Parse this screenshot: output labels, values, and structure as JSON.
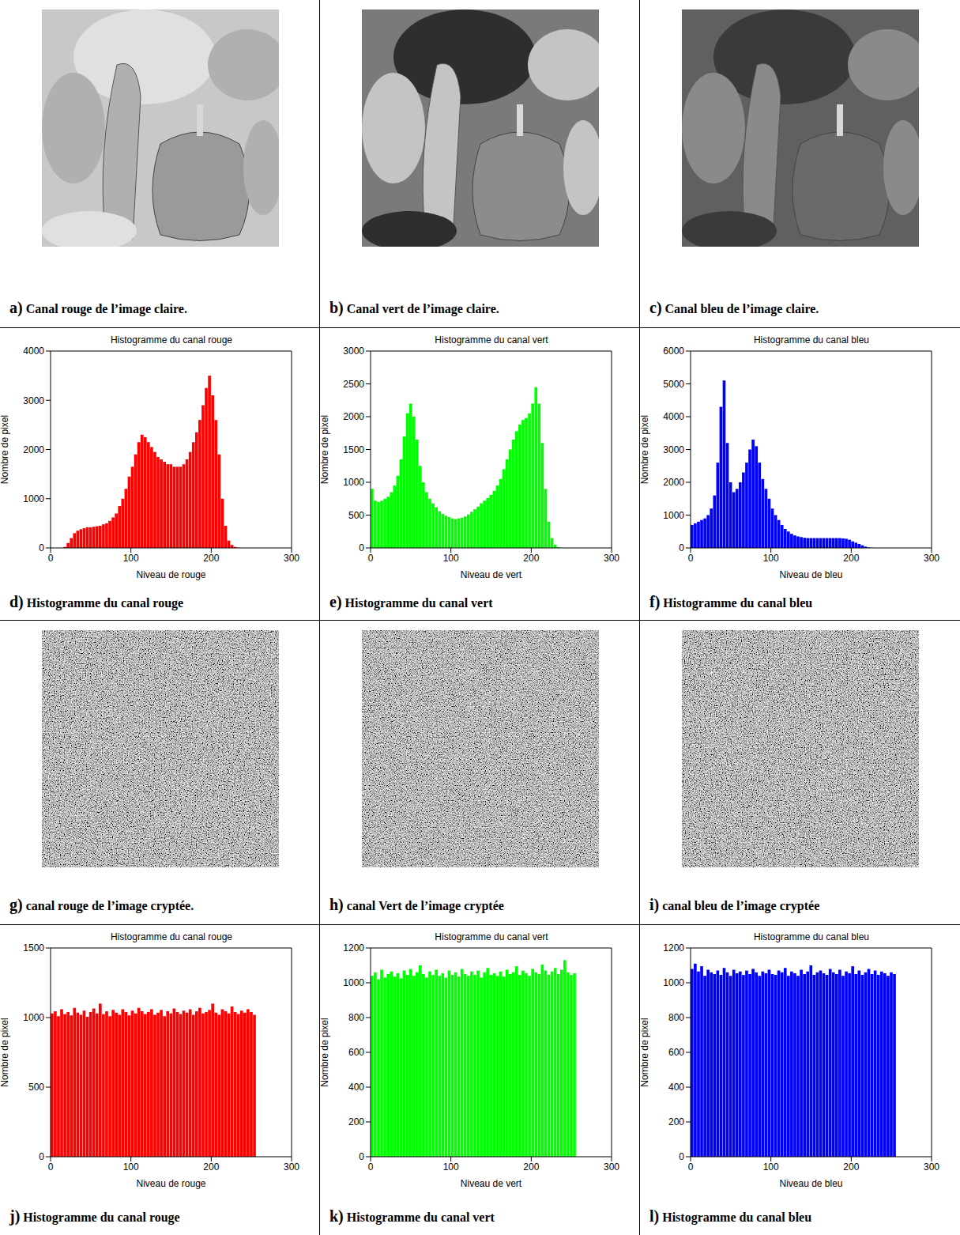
{
  "chart_data": [
    {
      "type": "histogram",
      "title": "Histogramme du canal rouge",
      "x_label": "Niveau de rouge",
      "y_label": "Nombre de pixel",
      "caption": "d) Histogramme du canal rouge",
      "color": "#ff0000",
      "bins": [
        0,
        4,
        8,
        12,
        16,
        20,
        24,
        28,
        32,
        36,
        40,
        44,
        48,
        52,
        56,
        60,
        64,
        68,
        72,
        76,
        80,
        84,
        88,
        92,
        96,
        100,
        104,
        108,
        112,
        116,
        120,
        124,
        128,
        132,
        136,
        140,
        144,
        148,
        152,
        156,
        160,
        164,
        168,
        172,
        176,
        180,
        184,
        188,
        192,
        196,
        200,
        204,
        208,
        212,
        216,
        220,
        224,
        228,
        232,
        236,
        240,
        244,
        248,
        252,
        256
      ],
      "values": [
        0,
        0,
        0,
        0,
        20,
        100,
        200,
        300,
        350,
        380,
        400,
        420,
        420,
        430,
        440,
        450,
        480,
        500,
        550,
        620,
        700,
        850,
        1000,
        1200,
        1450,
        1650,
        1900,
        2150,
        2300,
        2250,
        2150,
        2050,
        1950,
        1850,
        1800,
        1750,
        1700,
        1700,
        1650,
        1650,
        1650,
        1700,
        1800,
        1950,
        2150,
        2350,
        2600,
        2900,
        3250,
        3500,
        3100,
        2600,
        1900,
        1000,
        450,
        150,
        60,
        20,
        5,
        0,
        0,
        0,
        0,
        0
      ],
      "xlim": [
        0,
        300
      ],
      "xticks": [
        0,
        100,
        200,
        300
      ],
      "ylim": [
        0,
        4000
      ],
      "yticks": [
        0,
        1000,
        2000,
        3000,
        4000
      ]
    },
    {
      "type": "histogram",
      "title": "Histogramme du canal vert",
      "x_label": "Niveau de vert",
      "y_label": "Nombre de pixel",
      "caption": "e) Histogramme du canal vert",
      "color": "#00ff00",
      "bins": [
        0,
        4,
        8,
        12,
        16,
        20,
        24,
        28,
        32,
        36,
        40,
        44,
        48,
        52,
        56,
        60,
        64,
        68,
        72,
        76,
        80,
        84,
        88,
        92,
        96,
        100,
        104,
        108,
        112,
        116,
        120,
        124,
        128,
        132,
        136,
        140,
        144,
        148,
        152,
        156,
        160,
        164,
        168,
        172,
        176,
        180,
        184,
        188,
        192,
        196,
        200,
        204,
        208,
        212,
        216,
        220,
        224,
        228,
        232,
        236,
        240,
        244,
        248,
        252,
        256
      ],
      "values": [
        900,
        720,
        700,
        720,
        750,
        780,
        850,
        950,
        1100,
        1350,
        1700,
        2050,
        2200,
        2000,
        1650,
        1250,
        1000,
        850,
        750,
        680,
        620,
        560,
        520,
        490,
        470,
        450,
        440,
        450,
        460,
        480,
        510,
        550,
        590,
        630,
        680,
        720,
        760,
        810,
        870,
        950,
        1050,
        1200,
        1350,
        1500,
        1650,
        1780,
        1880,
        1950,
        1980,
        2050,
        2200,
        2450,
        2200,
        1600,
        900,
        400,
        150,
        50,
        10,
        0,
        0,
        0,
        0,
        0
      ],
      "xlim": [
        0,
        300
      ],
      "xticks": [
        0,
        100,
        200,
        300
      ],
      "ylim": [
        0,
        3000
      ],
      "yticks": [
        0,
        500,
        1000,
        1500,
        2000,
        2500,
        3000
      ]
    },
    {
      "type": "histogram",
      "title": "Histogramme du canal bleu",
      "x_label": "Niveau de bleu",
      "y_label": "Nombre de pixel",
      "caption": "f) Histogramme du canal bleu",
      "color": "#0000ff",
      "bins": [
        0,
        4,
        8,
        12,
        16,
        20,
        24,
        28,
        32,
        36,
        40,
        44,
        48,
        52,
        56,
        60,
        64,
        68,
        72,
        76,
        80,
        84,
        88,
        92,
        96,
        100,
        104,
        108,
        112,
        116,
        120,
        124,
        128,
        132,
        136,
        140,
        144,
        148,
        152,
        156,
        160,
        164,
        168,
        172,
        176,
        180,
        184,
        188,
        192,
        196,
        200,
        204,
        208,
        212,
        216,
        220,
        224,
        228,
        232,
        236,
        240,
        244,
        248,
        252,
        256
      ],
      "values": [
        700,
        750,
        800,
        850,
        900,
        1000,
        1200,
        1600,
        2600,
        4300,
        5100,
        3200,
        2000,
        1700,
        1800,
        2000,
        2300,
        2600,
        3000,
        3300,
        3100,
        2600,
        2100,
        1800,
        1500,
        1200,
        1000,
        850,
        700,
        580,
        500,
        430,
        380,
        350,
        330,
        310,
        300,
        300,
        300,
        300,
        300,
        300,
        300,
        300,
        300,
        300,
        300,
        290,
        280,
        250,
        200,
        160,
        120,
        80,
        40,
        15,
        5,
        0,
        0,
        0,
        0,
        0,
        0,
        0
      ],
      "xlim": [
        0,
        300
      ],
      "xticks": [
        0,
        100,
        200,
        300
      ],
      "ylim": [
        0,
        6000
      ],
      "yticks": [
        0,
        1000,
        2000,
        3000,
        4000,
        5000,
        6000
      ]
    },
    {
      "type": "histogram",
      "title": "Histogramme du canal rouge",
      "x_label": "Niveau de rouge",
      "y_label": "Nombre de pixel",
      "caption": "j) Histogramme du canal rouge",
      "color": "#ff0000",
      "bins": [
        0,
        4,
        8,
        12,
        16,
        20,
        24,
        28,
        32,
        36,
        40,
        44,
        48,
        52,
        56,
        60,
        64,
        68,
        72,
        76,
        80,
        84,
        88,
        92,
        96,
        100,
        104,
        108,
        112,
        116,
        120,
        124,
        128,
        132,
        136,
        140,
        144,
        148,
        152,
        156,
        160,
        164,
        168,
        172,
        176,
        180,
        184,
        188,
        192,
        196,
        200,
        204,
        208,
        212,
        216,
        220,
        224,
        228,
        232,
        236,
        240,
        244,
        248,
        252,
        256
      ],
      "values": [
        1030,
        1045,
        1010,
        1060,
        1025,
        1040,
        1015,
        1070,
        1035,
        1020,
        1050,
        1005,
        1040,
        1065,
        1030,
        1100,
        1025,
        1045,
        1010,
        1055,
        1035,
        1020,
        1060,
        1040,
        1015,
        1050,
        1030,
        1070,
        1045,
        1025,
        1040,
        1060,
        1020,
        1035,
        1055,
        1010,
        1045,
        1030,
        1065,
        1040,
        1025,
        1050,
        1035,
        1060,
        1020,
        1045,
        1070,
        1030,
        1040,
        1055,
        1100,
        1035,
        1020,
        1060,
        1045,
        1030,
        1080,
        1040,
        1025,
        1050,
        1035,
        1060,
        1040,
        1020
      ],
      "xlim": [
        0,
        300
      ],
      "xticks": [
        0,
        100,
        200,
        300
      ],
      "ylim": [
        0,
        1500
      ],
      "yticks": [
        0,
        500,
        1000,
        1500
      ]
    },
    {
      "type": "histogram",
      "title": "Histogramme du canal vert",
      "x_label": "Niveau de vert",
      "y_label": "Nombre de pixel",
      "caption": "k) Histogramme du canal vert",
      "color": "#00ff00",
      "bins": [
        0,
        4,
        8,
        12,
        16,
        20,
        24,
        28,
        32,
        36,
        40,
        44,
        48,
        52,
        56,
        60,
        64,
        68,
        72,
        76,
        80,
        84,
        88,
        92,
        96,
        100,
        104,
        108,
        112,
        116,
        120,
        124,
        128,
        132,
        136,
        140,
        144,
        148,
        152,
        156,
        160,
        164,
        168,
        172,
        176,
        180,
        184,
        188,
        192,
        196,
        200,
        204,
        208,
        212,
        216,
        220,
        224,
        228,
        232,
        236,
        240,
        244,
        248,
        252,
        256
      ],
      "values": [
        1040,
        1060,
        1020,
        1075,
        1030,
        1050,
        1065,
        1035,
        1055,
        1025,
        1070,
        1045,
        1080,
        1040,
        1060,
        1100,
        1050,
        1030,
        1065,
        1045,
        1075,
        1040,
        1055,
        1030,
        1070,
        1045,
        1060,
        1035,
        1080,
        1050,
        1040,
        1065,
        1045,
        1070,
        1030,
        1060,
        1085,
        1045,
        1055,
        1040,
        1065,
        1035,
        1075,
        1050,
        1060,
        1095,
        1045,
        1070,
        1055,
        1040,
        1080,
        1060,
        1050,
        1105,
        1070,
        1045,
        1065,
        1085,
        1050,
        1075,
        1130,
        1060,
        1045,
        1055
      ],
      "xlim": [
        0,
        300
      ],
      "xticks": [
        0,
        100,
        200,
        300
      ],
      "ylim": [
        0,
        1200
      ],
      "yticks": [
        0,
        200,
        400,
        600,
        800,
        1000,
        1200
      ]
    },
    {
      "type": "histogram",
      "title": "Histogramme du canal bleu",
      "x_label": "Niveau de bleu",
      "y_label": "Nombre de pixel",
      "caption": "l) Histogramme du canal bleu",
      "color": "#0000ff",
      "bins": [
        0,
        4,
        8,
        12,
        16,
        20,
        24,
        28,
        32,
        36,
        40,
        44,
        48,
        52,
        56,
        60,
        64,
        68,
        72,
        76,
        80,
        84,
        88,
        92,
        96,
        100,
        104,
        108,
        112,
        116,
        120,
        124,
        128,
        132,
        136,
        140,
        144,
        148,
        152,
        156,
        160,
        164,
        168,
        172,
        176,
        180,
        184,
        188,
        192,
        196,
        200,
        204,
        208,
        212,
        216,
        220,
        224,
        228,
        232,
        236,
        240,
        244,
        248,
        252,
        256
      ],
      "values": [
        1080,
        1110,
        1065,
        1095,
        1040,
        1075,
        1060,
        1050,
        1070,
        1045,
        1085,
        1060,
        1040,
        1075,
        1055,
        1065,
        1045,
        1070,
        1050,
        1080,
        1060,
        1040,
        1065,
        1055,
        1075,
        1050,
        1045,
        1070,
        1060,
        1085,
        1040,
        1065,
        1055,
        1040,
        1075,
        1050,
        1065,
        1100,
        1045,
        1060,
        1070,
        1055,
        1045,
        1080,
        1060,
        1050,
        1075,
        1040,
        1065,
        1055,
        1095,
        1050,
        1070,
        1045,
        1060,
        1080,
        1050,
        1070,
        1045,
        1065,
        1055,
        1040,
        1060,
        1050
      ],
      "xlim": [
        0,
        300
      ],
      "xticks": [
        0,
        100,
        200,
        300
      ],
      "ylim": [
        0,
        1200
      ],
      "yticks": [
        0,
        200,
        400,
        600,
        800,
        1000,
        1200
      ]
    }
  ],
  "images": [
    {
      "caption": "a) Canal rouge de l’image claire."
    },
    {
      "caption": "b) Canal vert de l’image claire."
    },
    {
      "caption": "c) Canal bleu de l’image claire."
    },
    {
      "caption": "g) canal rouge de l’image cryptée."
    },
    {
      "caption": "h) canal Vert de l’image cryptée"
    },
    {
      "caption": "i) canal bleu de l’image cryptée"
    }
  ]
}
